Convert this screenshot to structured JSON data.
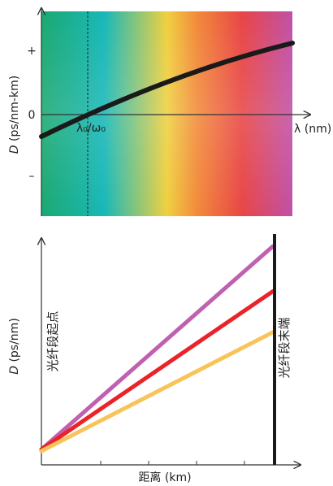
{
  "top_panel": {
    "y_axis_label_italic": "D",
    "y_axis_label_rest": " (ps/nm-km)",
    "y_tick_plus": "+",
    "y_tick_zero": "0",
    "y_tick_minus": "–",
    "x_axis_label": "λ (nm)",
    "lambda0_label": "λ₀/ω₀",
    "spectrum_colors": [
      "#1aa870",
      "#17b8b8",
      "#f0d040",
      "#f28a3a",
      "#e84545",
      "#c050a8"
    ],
    "curve_color": "#1a1a1a"
  },
  "bottom_panel": {
    "y_axis_label_italic": "D",
    "y_axis_label_rest": " (ps/nm)",
    "x_axis_label": "距离 (km)",
    "start_label": "光纤段起点",
    "end_label": "光纤段末端",
    "lines": [
      {
        "color": "#c060b0",
        "end_value": 1.0
      },
      {
        "color": "#e8232a",
        "end_value": 0.78
      },
      {
        "color": "#f7c45a",
        "end_value": 0.58
      }
    ],
    "end_bar_color": "#1a1a1a"
  }
}
